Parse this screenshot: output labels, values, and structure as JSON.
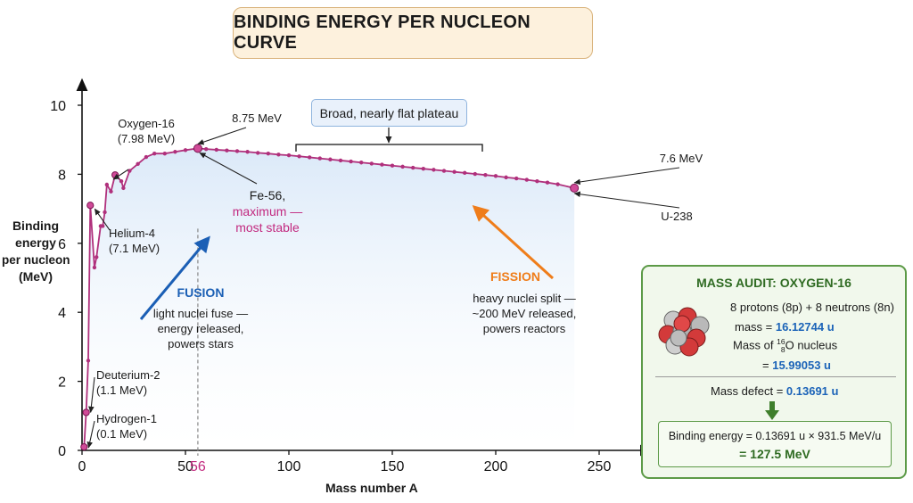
{
  "title": "BINDING ENERGY PER NUCLEON CURVE",
  "chart_data": {
    "type": "line",
    "xlabel": "Mass number A",
    "ylabel_lines": [
      "Binding",
      "energy",
      "per nucleon",
      "(MeV)"
    ],
    "xlim": [
      0,
      260
    ],
    "ylim": [
      0,
      10
    ],
    "x_ticks": [
      0,
      50,
      100,
      150,
      200,
      250
    ],
    "y_ticks": [
      0,
      2,
      4,
      6,
      8,
      10
    ],
    "marked_x_tick": "56",
    "series": [
      {
        "x": [
          1,
          2,
          3,
          4,
          6,
          7,
          9,
          10,
          11,
          12,
          14,
          16,
          19,
          20,
          23,
          27,
          31,
          35,
          40,
          45,
          50,
          56,
          60,
          65,
          70,
          75,
          80,
          85,
          90,
          95,
          100,
          105,
          110,
          115,
          120,
          125,
          130,
          135,
          140,
          145,
          150,
          155,
          160,
          165,
          170,
          175,
          180,
          185,
          190,
          195,
          200,
          205,
          210,
          215,
          220,
          225,
          230,
          238
        ],
        "y": [
          0.1,
          1.1,
          2.6,
          7.1,
          5.3,
          5.6,
          6.5,
          6.5,
          6.9,
          7.7,
          7.5,
          7.98,
          7.8,
          7.6,
          8.1,
          8.3,
          8.5,
          8.6,
          8.6,
          8.65,
          8.7,
          8.75,
          8.73,
          8.71,
          8.69,
          8.67,
          8.65,
          8.62,
          8.6,
          8.57,
          8.55,
          8.52,
          8.49,
          8.46,
          8.43,
          8.4,
          8.37,
          8.34,
          8.31,
          8.28,
          8.25,
          8.22,
          8.19,
          8.16,
          8.13,
          8.1,
          8.07,
          8.04,
          8.01,
          7.98,
          7.95,
          7.91,
          7.88,
          7.84,
          7.8,
          7.76,
          7.71,
          7.6
        ]
      }
    ],
    "highlights": [
      {
        "name": "Hydrogen-1",
        "x": 1,
        "y": 0.1,
        "label": "Hydrogen-1",
        "value": "(0.1 MeV)"
      },
      {
        "name": "Deuterium-2",
        "x": 2,
        "y": 1.1,
        "label": "Deuterium-2",
        "value": "(1.1 MeV)"
      },
      {
        "name": "Helium-4",
        "x": 4,
        "y": 7.1,
        "label": "Helium-4",
        "value": "(7.1 MeV)"
      },
      {
        "name": "Oxygen-16",
        "x": 16,
        "y": 7.98,
        "label": "Oxygen-16",
        "value": "(7.98 MeV)"
      },
      {
        "name": "Fe-56",
        "x": 56,
        "y": 8.75,
        "label": "Fe-56,",
        "value": "8.75 MeV"
      },
      {
        "name": "U-238",
        "x": 238,
        "y": 7.6,
        "label": "U-238",
        "value": "7.6 MeV"
      }
    ],
    "annotations": {
      "fe_note": [
        "maximum —",
        "most stable"
      ],
      "plateau": "Broad, nearly flat plateau",
      "fusion_title": "FUSION",
      "fusion_text": [
        "light nuclei fuse —",
        "energy released,",
        "powers stars"
      ],
      "fission_title": "FISSION",
      "fission_text": [
        "heavy nuclei split —",
        "~200 MeV released,",
        "powers reactors"
      ]
    },
    "colors": {
      "curve": "#b0307c",
      "fusion": "#1b5fb5",
      "fission": "#ef7d1a",
      "highlight_magenta": "#c2297f",
      "fill": "#e3eefa"
    }
  },
  "mass_audit": {
    "title": "MASS AUDIT: OXYGEN-16",
    "composition": "8 protons (8p) + 8 neutrons (8n)",
    "mass_label": "mass = ",
    "mass_value": "16.12744 u",
    "nucleus_label_pre": "Mass of ",
    "nucleus_mass": "number: 16",
    "nucleus_charge": "8",
    "nucleus_symbol": "O",
    "nucleus_label_post": " nucleus",
    "nucleus_eq": "= ",
    "nucleus_value": "15.99053 u",
    "defect_label": "Mass defect = ",
    "defect_value": "0.13691 u",
    "be_line": "Binding energy = 0.13691 u × 931.5 MeV/u",
    "be_result": "= 127.5 MeV"
  }
}
